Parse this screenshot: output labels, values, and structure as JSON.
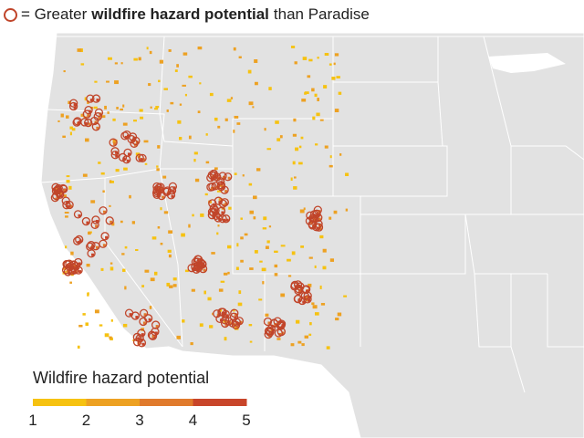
{
  "header": {
    "lead": "= Greater",
    "bold": "wildfire hazard potential",
    "tail": "than Paradise",
    "circle_color": "#c0452a"
  },
  "legend": {
    "title": "Wildfire hazard potential",
    "labels": [
      1,
      2,
      3,
      4,
      5
    ],
    "colors": [
      "#f6c211",
      "#eda122",
      "#e07a2c",
      "#c8452a"
    ]
  }
}
